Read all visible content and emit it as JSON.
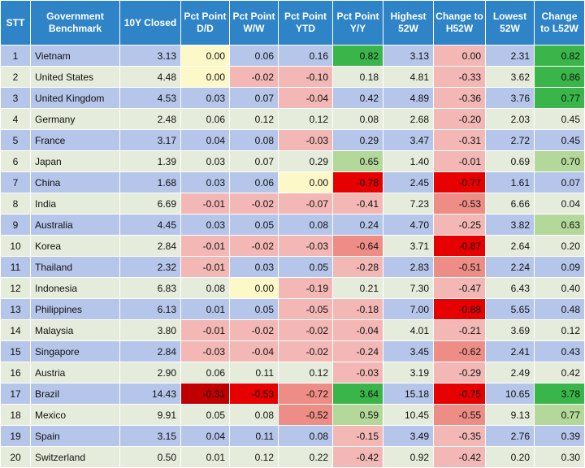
{
  "colors": {
    "header_bg": "#2f84c8",
    "row_odd": "#b5c6ea",
    "row_even": "#e6ecdb",
    "neg_light": "#f3b8b5",
    "neg_mid": "#ee8c86",
    "neg_strong": "#e60000",
    "neg_darkest": "#c00000",
    "pos_light": "#b3d89a",
    "pos_strong": "#3ab54a",
    "zero_yellow": "#fdf8c8"
  },
  "table": {
    "headers": [
      "STT",
      "Government Benchmark",
      "10Y Closed",
      "Pct Point D/D",
      "Pct Point W/W",
      "Pct Point YTD",
      "Pct Point Y/Y",
      "Highest 52W",
      "Change to H52W",
      "Lowest 52W",
      "Change to L52W"
    ],
    "rows": [
      [
        "1",
        "Vietnam",
        "3.13",
        "0.00",
        "0.06",
        "0.16",
        "0.82",
        "3.13",
        "0.00",
        "2.31",
        "0.82"
      ],
      [
        "2",
        "United States",
        "4.48",
        "0.00",
        "-0.02",
        "-0.10",
        "0.18",
        "4.81",
        "-0.33",
        "3.62",
        "0.86"
      ],
      [
        "3",
        "United Kingdom",
        "4.53",
        "0.03",
        "0.07",
        "-0.04",
        "0.42",
        "4.89",
        "-0.36",
        "3.76",
        "0.77"
      ],
      [
        "4",
        "Germany",
        "2.48",
        "0.06",
        "0.12",
        "0.12",
        "0.08",
        "2.68",
        "-0.20",
        "2.03",
        "0.45"
      ],
      [
        "5",
        "France",
        "3.17",
        "0.04",
        "0.08",
        "-0.03",
        "0.29",
        "3.47",
        "-0.31",
        "2.72",
        "0.45"
      ],
      [
        "6",
        "Japan",
        "1.39",
        "0.03",
        "0.07",
        "0.29",
        "0.65",
        "1.40",
        "-0.01",
        "0.69",
        "0.70"
      ],
      [
        "7",
        "China",
        "1.68",
        "0.03",
        "0.06",
        "0.00",
        "-0.78",
        "2.45",
        "-0.77",
        "1.61",
        "0.07"
      ],
      [
        "8",
        "India",
        "6.69",
        "-0.01",
        "-0.02",
        "-0.07",
        "-0.41",
        "7.23",
        "-0.53",
        "6.66",
        "0.04"
      ],
      [
        "9",
        "Australia",
        "4.45",
        "0.03",
        "0.05",
        "0.08",
        "0.24",
        "4.70",
        "-0.25",
        "3.82",
        "0.63"
      ],
      [
        "10",
        "Korea",
        "2.84",
        "-0.01",
        "-0.02",
        "-0.03",
        "-0.64",
        "3.71",
        "-0.87",
        "2.64",
        "0.20"
      ],
      [
        "11",
        "Thailand",
        "2.32",
        "-0.01",
        "0.03",
        "0.05",
        "-0.28",
        "2.83",
        "-0.51",
        "2.24",
        "0.09"
      ],
      [
        "12",
        "Indonesia",
        "6.83",
        "0.08",
        "0.00",
        "-0.19",
        "0.21",
        "7.30",
        "-0.47",
        "6.43",
        "0.40"
      ],
      [
        "13",
        "Philippines",
        "6.13",
        "0.01",
        "0.05",
        "-0.05",
        "-0.18",
        "7.00",
        "-0.88",
        "5.65",
        "0.48"
      ],
      [
        "14",
        "Malaysia",
        "3.80",
        "-0.01",
        "-0.02",
        "-0.02",
        "-0.04",
        "4.01",
        "-0.21",
        "3.69",
        "0.12"
      ],
      [
        "15",
        "Singapore",
        "2.84",
        "-0.03",
        "-0.04",
        "-0.02",
        "-0.24",
        "3.45",
        "-0.62",
        "2.41",
        "0.43"
      ],
      [
        "16",
        "Austria",
        "2.90",
        "0.06",
        "0.11",
        "0.12",
        "-0.03",
        "3.19",
        "-0.29",
        "2.49",
        "0.42"
      ],
      [
        "17",
        "Brazil",
        "14.43",
        "-0.31",
        "-0.53",
        "-0.72",
        "3.64",
        "15.18",
        "-0.75",
        "10.65",
        "3.78"
      ],
      [
        "18",
        "Mexico",
        "9.91",
        "0.05",
        "0.08",
        "-0.52",
        "0.59",
        "10.45",
        "-0.55",
        "9.13",
        "0.77"
      ],
      [
        "19",
        "Spain",
        "3.15",
        "0.04",
        "0.11",
        "0.08",
        "-0.15",
        "3.49",
        "-0.35",
        "2.76",
        "0.39"
      ],
      [
        "20",
        "Switzerland",
        "0.50",
        "0.01",
        "0.12",
        "0.22",
        "-0.42",
        "0.92",
        "-0.42",
        "0.20",
        "0.30"
      ]
    ],
    "highlights": [
      [
        null,
        null,
        null,
        "zero_yellow",
        null,
        null,
        "pos_strong",
        null,
        "neg_light",
        null,
        "pos_strong"
      ],
      [
        null,
        null,
        null,
        "zero_yellow",
        "neg_light",
        "neg_light",
        null,
        null,
        "neg_light",
        null,
        "pos_strong"
      ],
      [
        null,
        null,
        null,
        null,
        null,
        "neg_light",
        null,
        null,
        "neg_light",
        null,
        "pos_strong"
      ],
      [
        null,
        null,
        null,
        null,
        null,
        null,
        null,
        null,
        "neg_light",
        null,
        null
      ],
      [
        null,
        null,
        null,
        null,
        null,
        "neg_light",
        null,
        null,
        "neg_light",
        null,
        null
      ],
      [
        null,
        null,
        null,
        null,
        null,
        null,
        "pos_light",
        null,
        "neg_light",
        null,
        "pos_light"
      ],
      [
        null,
        null,
        null,
        null,
        null,
        "zero_yellow",
        "neg_strong",
        null,
        "neg_strong",
        null,
        null
      ],
      [
        null,
        null,
        null,
        "neg_light",
        "neg_light",
        "neg_light",
        "neg_light",
        null,
        "neg_mid",
        null,
        null
      ],
      [
        null,
        null,
        null,
        null,
        null,
        null,
        null,
        null,
        "neg_light",
        null,
        "pos_light"
      ],
      [
        null,
        null,
        null,
        "neg_light",
        "neg_light",
        "neg_light",
        "neg_mid",
        null,
        "neg_strong",
        null,
        null
      ],
      [
        null,
        null,
        null,
        "neg_light",
        null,
        null,
        "neg_light",
        null,
        "neg_mid",
        null,
        null
      ],
      [
        null,
        null,
        null,
        null,
        "zero_yellow",
        "neg_light",
        null,
        null,
        "neg_light",
        null,
        null
      ],
      [
        null,
        null,
        null,
        null,
        null,
        "neg_light",
        "neg_light",
        null,
        "neg_strong",
        null,
        null
      ],
      [
        null,
        null,
        null,
        "neg_light",
        "neg_light",
        "neg_light",
        "neg_light",
        null,
        "neg_light",
        null,
        null
      ],
      [
        null,
        null,
        null,
        "neg_light",
        "neg_light",
        "neg_light",
        "neg_light",
        null,
        "neg_mid",
        null,
        null
      ],
      [
        null,
        null,
        null,
        null,
        null,
        null,
        "neg_light",
        null,
        "neg_light",
        null,
        null
      ],
      [
        null,
        null,
        null,
        "neg_darkest",
        "neg_strong",
        "neg_mid",
        "pos_strong",
        null,
        "neg_strong",
        null,
        "pos_strong"
      ],
      [
        null,
        null,
        null,
        null,
        null,
        "neg_mid",
        "pos_light",
        null,
        "neg_mid",
        null,
        "pos_light"
      ],
      [
        null,
        null,
        null,
        null,
        null,
        null,
        "neg_light",
        null,
        "neg_light",
        null,
        null
      ],
      [
        null,
        null,
        null,
        null,
        null,
        null,
        "neg_light",
        null,
        "neg_light",
        null,
        null
      ]
    ]
  }
}
